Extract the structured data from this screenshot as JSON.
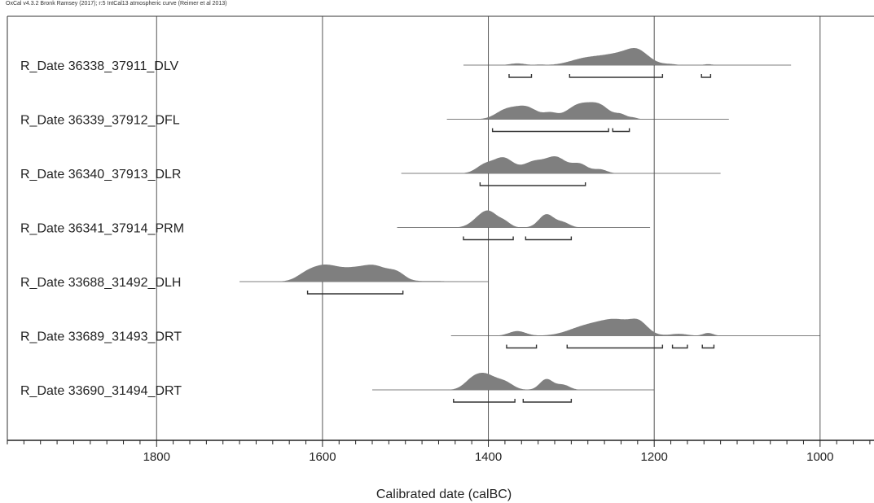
{
  "header": {
    "text": "OxCal v4.3.2 Bronk Ramsey (2017); r:5 IntCal13 atmospheric curve (Reimer et al 2013)"
  },
  "chart_data": {
    "type": "area",
    "xlabel": "Calibrated date (calBC)",
    "xlim": [
      1980,
      935
    ],
    "x_reversed": true,
    "xticks": [
      1800,
      1600,
      1400,
      1200,
      1000
    ],
    "minor_tick_step": 20,
    "gridlines": [
      1800,
      1600,
      1400,
      1200,
      1000
    ],
    "colors": {
      "distribution": "#7f7f7f",
      "baseline": "#555555",
      "range_bar": "#333333"
    },
    "series": [
      {
        "name": "R_Date 36338_37911_DLV",
        "span": [
          1430,
          1035
        ],
        "peaks": [
          [
            1365,
            0.15,
            9
          ],
          [
            1338,
            0.05,
            5
          ],
          [
            1285,
            0.45,
            18
          ],
          [
            1240,
            1.0,
            25
          ],
          [
            1220,
            0.7,
            12
          ],
          [
            1180,
            0.05,
            6
          ],
          [
            1135,
            0.08,
            5
          ]
        ],
        "ranges_95": [
          [
            1375,
            1348
          ],
          [
            1302,
            1190
          ],
          [
            1143,
            1132
          ]
        ]
      },
      {
        "name": "R_Date 36339_37912_DFL",
        "span": [
          1450,
          1110
        ],
        "peaks": [
          [
            1380,
            0.55,
            12
          ],
          [
            1355,
            0.85,
            14
          ],
          [
            1325,
            0.35,
            8
          ],
          [
            1290,
            1.0,
            15
          ],
          [
            1265,
            0.8,
            12
          ],
          [
            1240,
            0.3,
            7
          ],
          [
            1225,
            0.1,
            5
          ]
        ],
        "ranges_95": [
          [
            1395,
            1255
          ],
          [
            1250,
            1230
          ]
        ]
      },
      {
        "name": "R_Date 36340_37913_DLR",
        "span": [
          1505,
          1120
        ],
        "peaks": [
          [
            1405,
            0.5,
            10
          ],
          [
            1382,
            1.0,
            12
          ],
          [
            1345,
            0.75,
            13
          ],
          [
            1318,
            1.0,
            12
          ],
          [
            1290,
            0.6,
            10
          ],
          [
            1265,
            0.25,
            8
          ]
        ],
        "ranges_95": [
          [
            1410,
            1283
          ]
        ]
      },
      {
        "name": "R_Date 36341_37914_PRM",
        "span": [
          1510,
          1205
        ],
        "peaks": [
          [
            1412,
            0.5,
            10
          ],
          [
            1398,
            1.0,
            10
          ],
          [
            1380,
            0.35,
            7
          ],
          [
            1330,
            0.95,
            9
          ],
          [
            1310,
            0.35,
            8
          ]
        ],
        "ranges_95": [
          [
            1430,
            1370
          ],
          [
            1355,
            1300
          ]
        ]
      },
      {
        "name": "R_Date 33688_31492_DLH",
        "span": [
          1700,
          1400
        ],
        "peaks": [
          [
            1620,
            0.45,
            12
          ],
          [
            1598,
            1.0,
            15
          ],
          [
            1565,
            0.85,
            18
          ],
          [
            1535,
            0.95,
            15
          ],
          [
            1510,
            0.55,
            10
          ],
          [
            1470,
            0.05,
            18
          ]
        ],
        "ranges_95": [
          [
            1618,
            1503
          ]
        ]
      },
      {
        "name": "R_Date 33689_31493_DRT",
        "span": [
          1445,
          1000
        ],
        "peaks": [
          [
            1365,
            0.3,
            10
          ],
          [
            1285,
            0.5,
            20
          ],
          [
            1245,
            1.0,
            22
          ],
          [
            1218,
            0.55,
            10
          ],
          [
            1170,
            0.12,
            10
          ],
          [
            1135,
            0.18,
            6
          ]
        ],
        "ranges_95": [
          [
            1378,
            1342
          ],
          [
            1305,
            1190
          ],
          [
            1178,
            1160
          ],
          [
            1142,
            1128
          ]
        ]
      },
      {
        "name": "R_Date 33690_31494_DRT",
        "span": [
          1540,
          1200
        ],
        "peaks": [
          [
            1420,
            0.55,
            10
          ],
          [
            1403,
            1.0,
            12
          ],
          [
            1380,
            0.5,
            10
          ],
          [
            1330,
            0.75,
            8
          ],
          [
            1310,
            0.35,
            8
          ]
        ],
        "ranges_95": [
          [
            1442,
            1368
          ],
          [
            1358,
            1300
          ]
        ]
      }
    ]
  }
}
